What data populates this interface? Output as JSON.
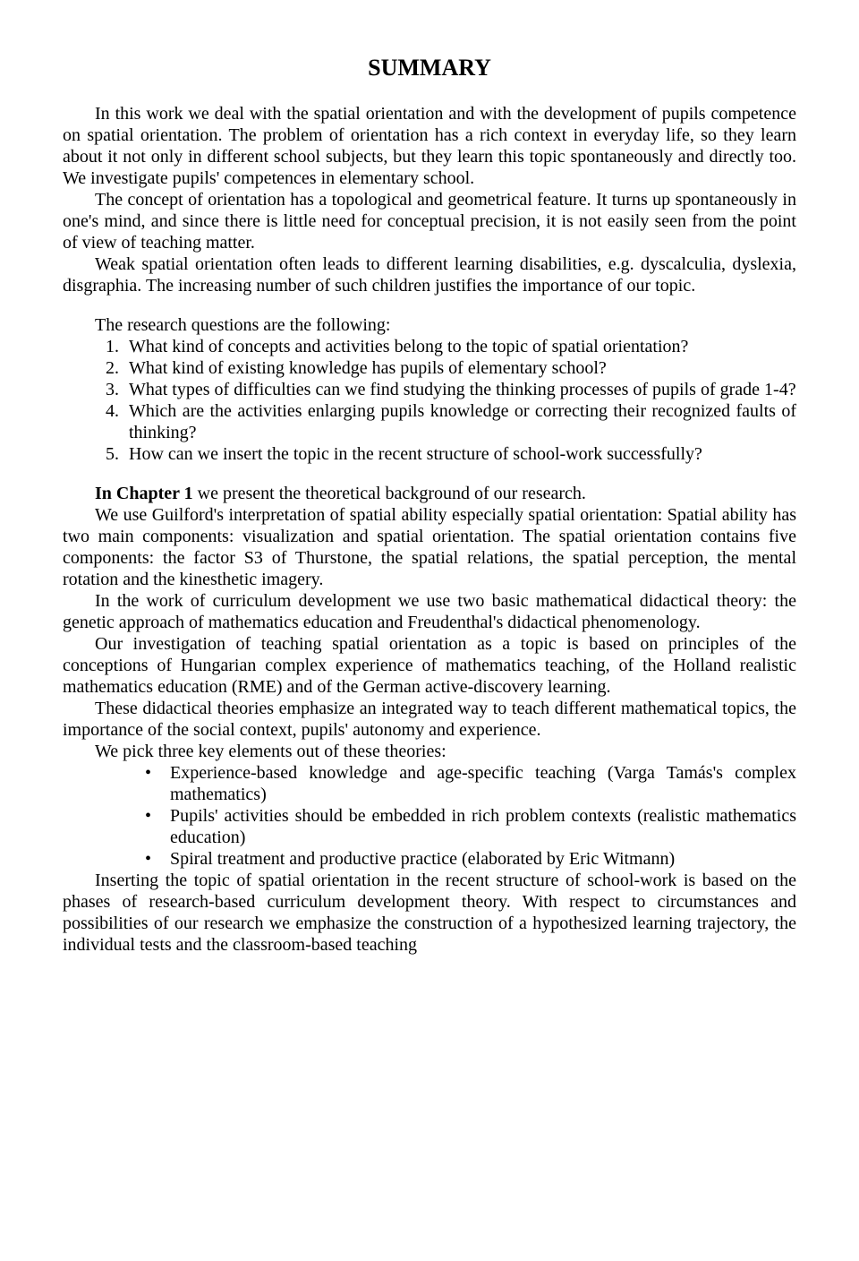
{
  "title": "SUMMARY",
  "intro": {
    "p1": "In this work we deal with the spatial orientation and with the development of pupils competence on spatial orientation. The problem of orientation has a rich context in everyday life, so they learn about it not only in different school subjects, but they learn this topic spontaneously and directly too. We investigate pupils' competences in elementary school.",
    "p2": "The concept of orientation has a topological and geometrical feature. It turns up spontaneously in one's mind, and since there is little need for conceptual precision, it is not easily seen from the point of view of teaching matter.",
    "p3": "Weak spatial orientation often leads to different learning disabilities, e.g. dyscalculia, dyslexia, disgraphia. The increasing number of such children justifies the importance of our topic."
  },
  "research": {
    "lead": "The research questions are the following:",
    "q1": "What kind of concepts and activities belong to the topic of spatial orientation?",
    "q2": "What kind of existing knowledge has pupils of elementary school?",
    "q3": "What types of difficulties can we find studying the thinking processes of pupils of grade 1-4?",
    "q4": "Which are the activities enlarging pupils knowledge or correcting their recognized faults of thinking?",
    "q5": "How can we insert the topic in the recent structure of school-work successfully?"
  },
  "chapter": {
    "lead_bold": "In Chapter 1",
    "lead_rest": " we present the theoretical background of our research.",
    "p1": "We use Guilford's interpretation of spatial ability especially spatial orientation: Spatial ability has two main components: visualization and spatial orientation. The spatial orientation contains five components: the factor S3 of Thurstone, the spatial relations, the spatial perception, the mental rotation and the kinesthetic imagery.",
    "p2": "In the work of curriculum development we use two basic mathematical didactical theory: the genetic approach of mathematics education and Freudenthal's didactical phenomenology.",
    "p3": "Our investigation of teaching spatial orientation as a topic is based on principles of the conceptions of Hungarian complex experience of mathematics teaching, of the Holland realistic mathematics education (RME) and of the German active-discovery learning.",
    "p4": "These didactical theories emphasize an integrated way to teach different mathematical topics, the importance of the social context, pupils' autonomy and experience.",
    "p5": "We pick three key elements out of these theories:",
    "b1": "Experience-based knowledge and age-specific teaching (Varga Tamás's complex mathematics)",
    "b2": "Pupils' activities should be embedded in rich problem contexts (realistic mathematics education)",
    "b3": "Spiral treatment and productive practice (elaborated by Eric Witmann)",
    "p6": "Inserting the topic of spatial orientation in the recent structure of school-work is based on the phases of research-based curriculum development theory. With respect to circumstances and possibilities of our research we emphasize the construction of a hypothesized learning trajectory, the individual tests and the classroom-based teaching"
  }
}
